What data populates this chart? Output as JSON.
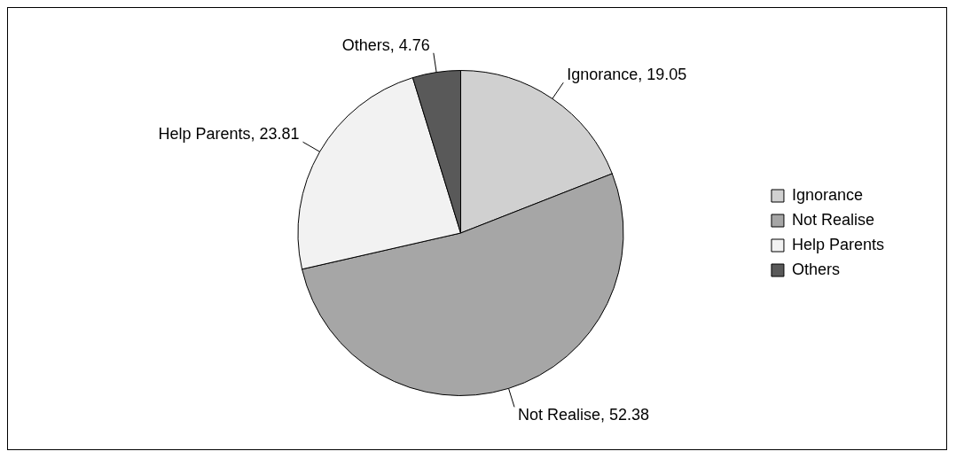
{
  "chart_data": {
    "type": "pie",
    "categories": [
      "Ignorance",
      "Not Realise",
      "Help Parents",
      "Others"
    ],
    "values": [
      19.05,
      52.38,
      23.81,
      4.76
    ],
    "value_labels": [
      "Ignorance, 19.05",
      "Not Realise, 52.38",
      "Help Parents, 23.81",
      "Others, 4.76"
    ],
    "colors": [
      "#d0d0d0",
      "#a6a6a6",
      "#f2f2f2",
      "#595959"
    ],
    "legend": "right"
  }
}
